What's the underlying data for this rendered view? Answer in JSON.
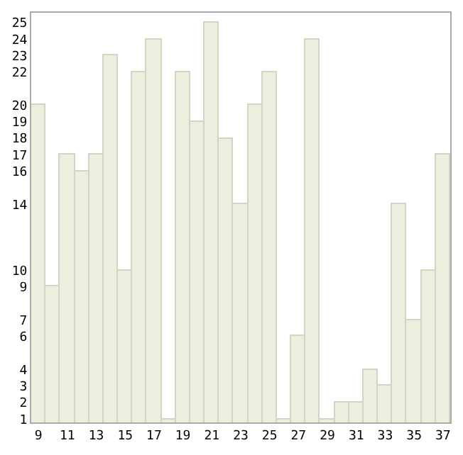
{
  "chart_data": {
    "type": "bar",
    "categories": [
      "9",
      null,
      "11",
      null,
      "13",
      null,
      "15",
      null,
      "17",
      null,
      "19",
      null,
      "21",
      null,
      "23",
      null,
      "25",
      null,
      "27",
      null,
      "29",
      null,
      "31",
      null,
      "33",
      null,
      "35",
      null,
      "37"
    ],
    "values": [
      20,
      9,
      17,
      16,
      17,
      23,
      10,
      22,
      24,
      1,
      22,
      19,
      25,
      18,
      14,
      20,
      22,
      1,
      6,
      24,
      1,
      2,
      2,
      4,
      3,
      14,
      7,
      10,
      17
    ],
    "color": "#eeeedf",
    "ylim": [
      0.8,
      25.6
    ],
    "yticks": [
      1,
      2,
      3,
      4,
      6,
      7,
      9,
      10,
      14,
      16,
      17,
      18,
      19,
      20,
      22,
      23,
      24,
      25
    ]
  }
}
